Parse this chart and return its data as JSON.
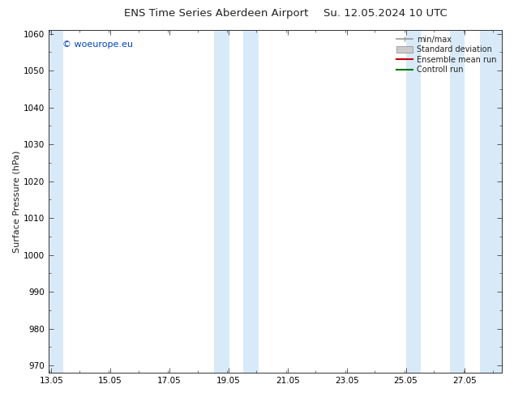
{
  "title": "ENS Time Series Aberdeen Airport",
  "title2": "Su. 12.05.2024 10 UTC",
  "ylabel": "Surface Pressure (hPa)",
  "ylim": [
    968,
    1061
  ],
  "yticks": [
    970,
    980,
    990,
    1000,
    1010,
    1020,
    1030,
    1040,
    1050,
    1060
  ],
  "xlim_start": 12.97,
  "xlim_end": 28.3,
  "xtick_pos": [
    13.05,
    15.05,
    17.05,
    19.05,
    21.05,
    23.05,
    25.05,
    27.05
  ],
  "xtick_labels": [
    "13.05",
    "15.05",
    "17.05",
    "19.05",
    "21.05",
    "23.05",
    "25.05",
    "27.05"
  ],
  "bg_color": "#ffffff",
  "plot_bg_color": "#ffffff",
  "shaded_color": "#d8eaf8",
  "shaded_bands": [
    {
      "x_start": 12.97,
      "x_end": 13.45
    },
    {
      "x_start": 18.55,
      "x_end": 19.08
    },
    {
      "x_start": 19.55,
      "x_end": 20.08
    },
    {
      "x_start": 25.05,
      "x_end": 25.55
    },
    {
      "x_start": 26.55,
      "x_end": 27.05
    },
    {
      "x_start": 27.55,
      "x_end": 28.3
    }
  ],
  "legend_items": [
    {
      "label": "min/max",
      "type": "hline",
      "color": "#999999"
    },
    {
      "label": "Standard deviation",
      "type": "box",
      "color": "#cccccc"
    },
    {
      "label": "Ensemble mean run",
      "type": "line",
      "color": "#cc0000"
    },
    {
      "label": "Controll run",
      "type": "line",
      "color": "#007700"
    }
  ],
  "watermark": "© woeurope.eu",
  "watermark_color": "#0044bb",
  "font_color": "#222222",
  "tick_font_size": 7.5,
  "title_font_size": 9.5,
  "ylabel_font_size": 8,
  "legend_font_size": 7,
  "watermark_font_size": 8
}
